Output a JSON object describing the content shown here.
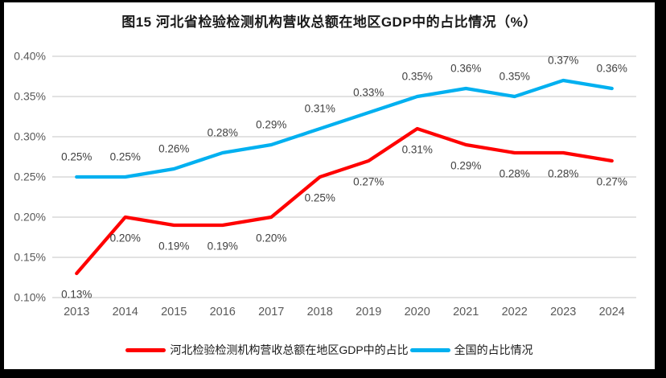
{
  "title": "图15 河北省检验检测机构营收总额在地区GDP中的占比情况（%）",
  "chart_data": {
    "type": "line",
    "categories": [
      "2013",
      "2014",
      "2015",
      "2016",
      "2017",
      "2018",
      "2019",
      "2020",
      "2021",
      "2022",
      "2023",
      "2024"
    ],
    "series": [
      {
        "name": "河北检验检测机构营收总额在地区GDP中的占比",
        "color": "#FF0000",
        "values": [
          0.13,
          0.2,
          0.19,
          0.19,
          0.2,
          0.25,
          0.27,
          0.31,
          0.29,
          0.28,
          0.28,
          0.27
        ],
        "data_labels": [
          "0.13%",
          "0.20%",
          "0.19%",
          "0.19%",
          "0.20%",
          "0.25%",
          "0.27%",
          "0.31%",
          "0.29%",
          "0.28%",
          "0.28%",
          "0.27%"
        ],
        "label_position": "below"
      },
      {
        "name": "全国的占比情况",
        "color": "#00B0F0",
        "values": [
          0.25,
          0.25,
          0.26,
          0.28,
          0.29,
          0.31,
          0.33,
          0.35,
          0.36,
          0.35,
          0.37,
          0.36
        ],
        "data_labels": [
          "0.25%",
          "0.25%",
          "0.26%",
          "0.28%",
          "0.29%",
          "0.31%",
          "0.33%",
          "0.35%",
          "0.36%",
          "0.35%",
          "0.37%",
          "0.36%"
        ],
        "label_position": "above"
      }
    ],
    "xlabel": "",
    "ylabel": "",
    "unit": "%",
    "ylim": [
      0.1,
      0.4
    ],
    "yticks": [
      0.1,
      0.15,
      0.2,
      0.25,
      0.3,
      0.35,
      0.4
    ],
    "ytick_labels": [
      "0.10%",
      "0.15%",
      "0.20%",
      "0.25%",
      "0.30%",
      "0.35%",
      "0.40%"
    ],
    "grid": true,
    "legend_position": "bottom"
  },
  "colors": {
    "background": "#FFFFFF",
    "frame_border": "#000000",
    "grid_line": "#D9D9D9",
    "tick_label": "#595959",
    "data_label": "#404040",
    "title_text": "#1A1A1A",
    "series_hebei": "#FF0000",
    "series_national": "#00B0F0"
  }
}
